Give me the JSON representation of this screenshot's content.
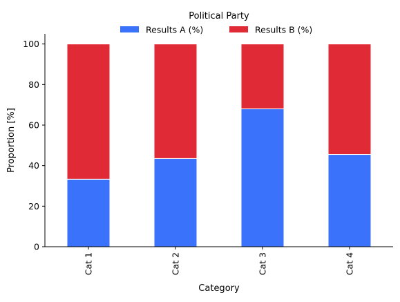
{
  "chart_data": {
    "type": "bar",
    "stacked": true,
    "categories": [
      "Cat 1",
      "Cat 2",
      "Cat 3",
      "Cat 4"
    ],
    "series": [
      {
        "name": "Results A (%)",
        "values": [
          33.3,
          43.5,
          68.0,
          45.5
        ],
        "color": "#3a72fc"
      },
      {
        "name": "Results B (%)",
        "values": [
          66.7,
          56.5,
          32.0,
          54.5
        ],
        "color": "#e02a35"
      }
    ],
    "legend_title": "Political Party",
    "legend_placement": "top-center",
    "xlabel": "Category",
    "ylabel": "Proportion [%]",
    "ylim": [
      0,
      105
    ],
    "yticks": [
      0,
      20,
      40,
      60,
      80,
      100
    ],
    "grid": false
  }
}
